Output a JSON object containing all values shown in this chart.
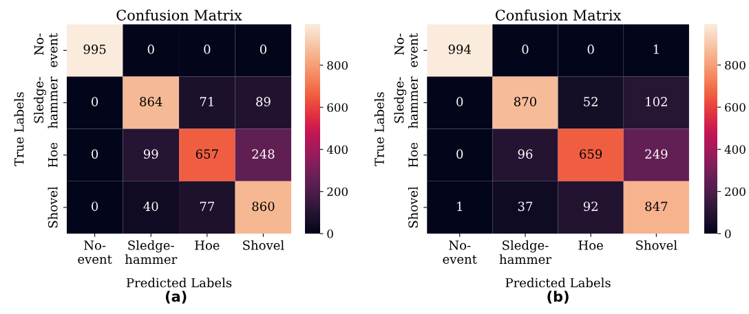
{
  "chart_data": [
    {
      "type": "heatmap",
      "title": "Confusion Matrix",
      "xlabel": "Predicted Labels",
      "ylabel": "True Labels",
      "categories": [
        "No-\nevent",
        "Sledge-\nhammer",
        "Hoe",
        "Shovel"
      ],
      "y_categories": [
        "No-\nevent",
        "Sledge-\nhammer",
        "Hoe",
        "Shovel"
      ],
      "cells": [
        [
          995,
          0,
          0,
          0
        ],
        [
          0,
          864,
          71,
          89
        ],
        [
          0,
          99,
          657,
          248
        ],
        [
          0,
          40,
          77,
          860
        ]
      ],
      "clim": [
        0,
        995
      ],
      "cticks": [
        0,
        200,
        400,
        600,
        800
      ],
      "data_labels": true,
      "annotations": [
        "(a)"
      ]
    },
    {
      "type": "heatmap",
      "title": "Confusion Matrix",
      "xlabel": "Predicted Labels",
      "ylabel": "True Labels",
      "categories": [
        "No-\nevent",
        "Sledge-\nhammer",
        "Hoe",
        "Shovel"
      ],
      "y_categories": [
        "No-\nevent",
        "Sledge-\nhammer",
        "Hoe",
        "Shovel"
      ],
      "cells": [
        [
          994,
          0,
          0,
          1
        ],
        [
          0,
          870,
          52,
          102
        ],
        [
          0,
          96,
          659,
          249
        ],
        [
          1,
          37,
          92,
          847
        ]
      ],
      "clim": [
        0,
        994
      ],
      "cticks": [
        0,
        200,
        400,
        600,
        800
      ],
      "data_labels": true,
      "annotations": [
        "(b)"
      ]
    }
  ]
}
